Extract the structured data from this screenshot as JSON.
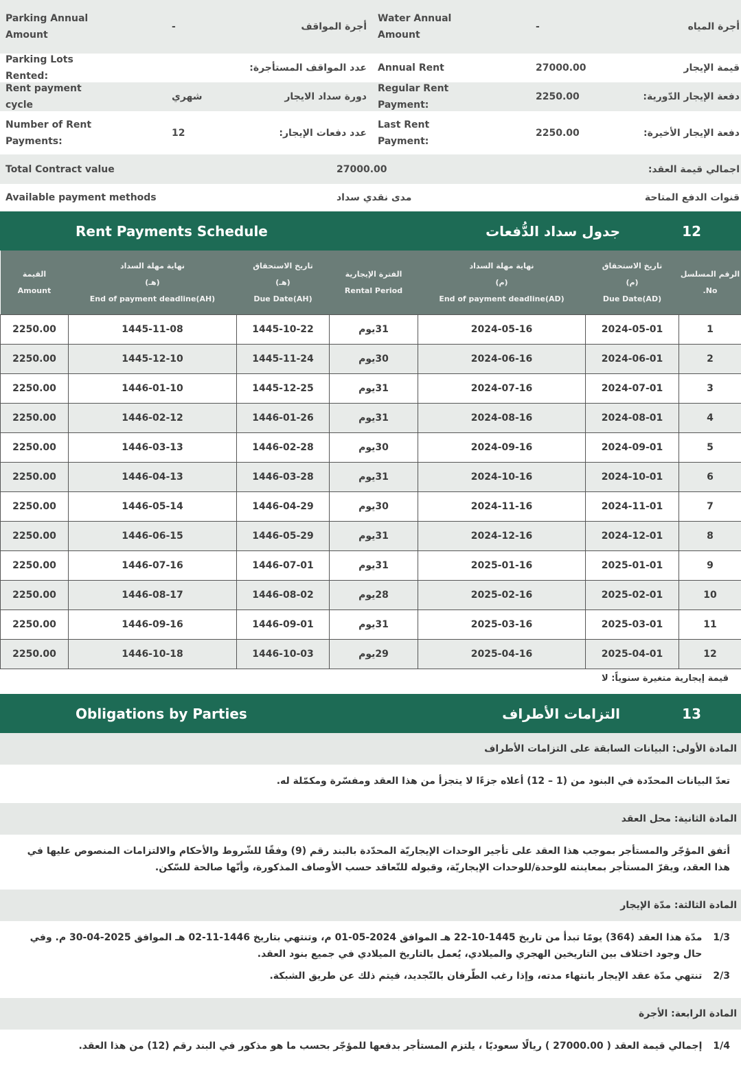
{
  "info": {
    "rows": [
      {
        "left": {
          "label_en": "Parking Annual Amount",
          "value": "-",
          "label_ar": "أجرة المواقف"
        },
        "right": {
          "label_en": "Water Annual Amount",
          "value": "-",
          "label_ar": "أجرة المياه"
        }
      },
      {
        "left": {
          "label_en": "Parking Lots Rented:",
          "label_ar": "عدد المواقف المستأجرة:"
        },
        "right": {
          "label_en": "Annual Rent",
          "value": "27000.00",
          "label_ar": "قيمة الإيجار"
        }
      },
      {
        "left": {
          "label_en": "Rent payment cycle",
          "value": "شهري",
          "label_ar": "دورة سداد الايجار"
        },
        "right": {
          "label_en": "Regular Rent Payment:",
          "value": "2250.00",
          "label_ar": "دفعة الإيجار الدّورية:"
        }
      },
      {
        "left": {
          "label_en": "Number of Rent Payments:",
          "value": "12",
          "label_ar": "عدد دفعات الإيجار:"
        },
        "right": {
          "label_en": "Last Rent Payment:",
          "value": "2250.00",
          "label_ar": "دفعة الإيجار الأخيرة:"
        }
      },
      {
        "full": {
          "label_en": "Total Contract value",
          "value": "27000.00",
          "label_ar": "اجمالي قيمة العقد:"
        }
      },
      {
        "full": {
          "label_en": "Available payment methods",
          "value": "مدى نقدي سداد",
          "label_ar": "قنوات الدفع المتاحة"
        }
      }
    ]
  },
  "schedule": {
    "title_en": "Rent Payments Schedule",
    "title_ar": "جدول سداد الدُّفعات",
    "number": "12",
    "headers": [
      {
        "ar": "القيمة",
        "en": "Amount"
      },
      {
        "ar": "نهاية مهلة السداد",
        "sub": "(هـ)",
        "en": "End of payment deadline(AH)"
      },
      {
        "ar": "تاريخ الاستحقاق",
        "sub": "(هـ)",
        "en": "Due Date(AH)"
      },
      {
        "ar": "الفترة الإيجارية",
        "en": "Rental Period"
      },
      {
        "ar": "نهاية مهلة السداد",
        "sub": "(م)",
        "en": "End of payment deadline(AD)"
      },
      {
        "ar": "تاريخ الاستحقاق",
        "sub": "(م)",
        "en": "Due Date(AD)"
      },
      {
        "ar": "الرقم المسلسل",
        "en": "No."
      }
    ],
    "rows": [
      [
        "2250.00",
        "1445-11-08",
        "1445-10-22",
        "31يوم",
        "2024-05-16",
        "2024-05-01",
        "1"
      ],
      [
        "2250.00",
        "1445-12-10",
        "1445-11-24",
        "30يوم",
        "2024-06-16",
        "2024-06-01",
        "2"
      ],
      [
        "2250.00",
        "1446-01-10",
        "1445-12-25",
        "31يوم",
        "2024-07-16",
        "2024-07-01",
        "3"
      ],
      [
        "2250.00",
        "1446-02-12",
        "1446-01-26",
        "31يوم",
        "2024-08-16",
        "2024-08-01",
        "4"
      ],
      [
        "2250.00",
        "1446-03-13",
        "1446-02-28",
        "30يوم",
        "2024-09-16",
        "2024-09-01",
        "5"
      ],
      [
        "2250.00",
        "1446-04-13",
        "1446-03-28",
        "31يوم",
        "2024-10-16",
        "2024-10-01",
        "6"
      ],
      [
        "2250.00",
        "1446-05-14",
        "1446-04-29",
        "30يوم",
        "2024-11-16",
        "2024-11-01",
        "7"
      ],
      [
        "2250.00",
        "1446-06-15",
        "1446-05-29",
        "31يوم",
        "2024-12-16",
        "2024-12-01",
        "8"
      ],
      [
        "2250.00",
        "1446-07-16",
        "1446-07-01",
        "31يوم",
        "2025-01-16",
        "2025-01-01",
        "9"
      ],
      [
        "2250.00",
        "1446-08-17",
        "1446-08-02",
        "28يوم",
        "2025-02-16",
        "2025-02-01",
        "10"
      ],
      [
        "2250.00",
        "1446-09-16",
        "1446-09-01",
        "31يوم",
        "2025-03-16",
        "2025-03-01",
        "11"
      ],
      [
        "2250.00",
        "1446-10-18",
        "1446-10-03",
        "29يوم",
        "2025-04-16",
        "2025-04-01",
        "12"
      ]
    ],
    "note": "قيمة إيجارية متغيرة سنوياً: لا"
  },
  "obligations": {
    "title_en": "Obligations by Parties",
    "title_ar": "التزامات الأطراف",
    "number": "13",
    "articles": [
      {
        "heading": "المادة الأولى: البيانات السابقة على التزامات الأطراف",
        "items": [
          {
            "text": "تعدّ البيانات المحدّدة في البنود من (1 – 12) أعلاه جزءًا لا يتجزأ من هذا العقد ومفسّرة ومكمّلة له."
          }
        ]
      },
      {
        "heading": "المادة الثانية: محل العقد",
        "items": [
          {
            "text": "أتفق المؤجّر والمستأجر بموجب هذا العقد على تأجير الوحدات الإيجاريّة المحدّدة بالبند رقم (9) وفقًا للشّروط والأحكام والالتزامات المنصوص عليها في هذا العقد، ويقرّ المستأجر بمعاينته للوحدة/للوحدات الإيجاريّة، وقبوله للتّعاقد حسب الأوصاف المذكورة، وأنّها صالحة للسّكن."
          }
        ]
      },
      {
        "heading": "المادة الثالثة: مدّة الإيجار",
        "items": [
          {
            "num": "1/3",
            "text": "مدّة هذا العقد (364) يومًا تبدأ من تاريخ 1445-10-22 هـ الموافق 2024-05-01 م، وتنتهي بتاريخ 1446-11-02 هـ الموافق 2025-04-30 م. وفي حال وجود اختلاف بين التاريخين الهجري والميلادي، يُعمل بالتاريخ الميلادي في جميع بنود العقد."
          },
          {
            "num": "2/3",
            "text": "تنتهي مدّة عقد الإيجار بانتهاء مدته، وإذا رغب الطّرفان بالتّجديد، فيتم ذلك عن طريق الشبكة."
          }
        ]
      },
      {
        "heading": "المادة الرابعة: الأجرة",
        "items": [
          {
            "num": "1/4",
            "text": "إجمالي قيمة العقد ( 27000.00 ) ريالًا سعوديًا ، يلتزم المستأجر بدفعها للمؤجّر بحسب ما هو مذكور في البند رقم (12) من هذا العقد."
          }
        ]
      }
    ]
  }
}
